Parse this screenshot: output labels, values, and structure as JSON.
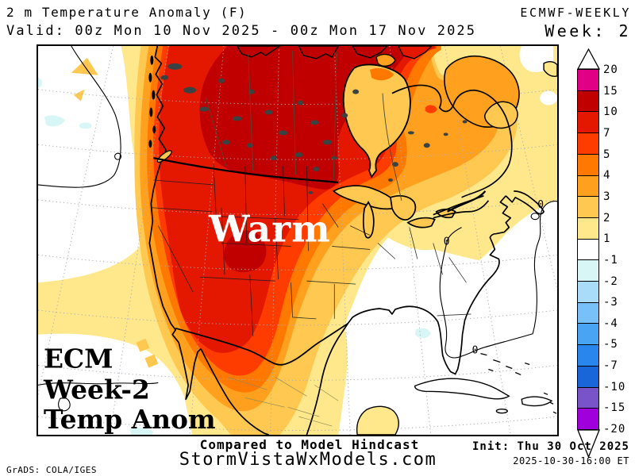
{
  "header": {
    "title": "2 m Temperature Anomaly (F)",
    "model": "ECMWF-WEEKLY",
    "valid": "Valid: 00z Mon 10 Nov 2025 - 00z Mon 17 Nov 2025",
    "week": "Week: 2"
  },
  "map": {
    "warm_label": "Warm",
    "corner_lines": {
      "l1": "ECM",
      "l2": "Week-2",
      "l3": "Temp Anom"
    },
    "zero_labels": {
      "a": "0",
      "b": "0",
      "c": "0"
    }
  },
  "colorbar": {
    "tick_labels": [
      "20",
      "15",
      "10",
      "7",
      "5",
      "4",
      "3",
      "2",
      "1",
      "-1",
      "-2",
      "-3",
      "-4",
      "-5",
      "-7",
      "-10",
      "-15",
      "-20"
    ],
    "colors": [
      "#E10085",
      "#C00000",
      "#E41800",
      "#FF3C00",
      "#FF7800",
      "#FFA01E",
      "#FFC850",
      "#FFE88C",
      "#FFFFFF",
      "#D8F6F6",
      "#A8DCF8",
      "#78C0F8",
      "#4AA4F4",
      "#2886EC",
      "#1866D8",
      "#7854C8",
      "#A000DC"
    ]
  },
  "footer": {
    "caption": "Compared to Model Hindcast",
    "site": "StormVistaWxModels.com",
    "credit": "GrADS: COLA/IGES",
    "init": "Init: Thu 30 Oct 2025",
    "init_time": "2025-10-30-16:00 ET"
  },
  "palette": {
    "ocean": "#FFFFFF",
    "warm1": "#FFE88C",
    "warm2": "#FFC850",
    "warm3": "#FFA01E",
    "warm4": "#FF7800",
    "warm5": "#FF3C00",
    "warm7": "#E41800",
    "warm10": "#C00000",
    "cool1": "#D8F6F6",
    "lake": "#3A4242"
  }
}
